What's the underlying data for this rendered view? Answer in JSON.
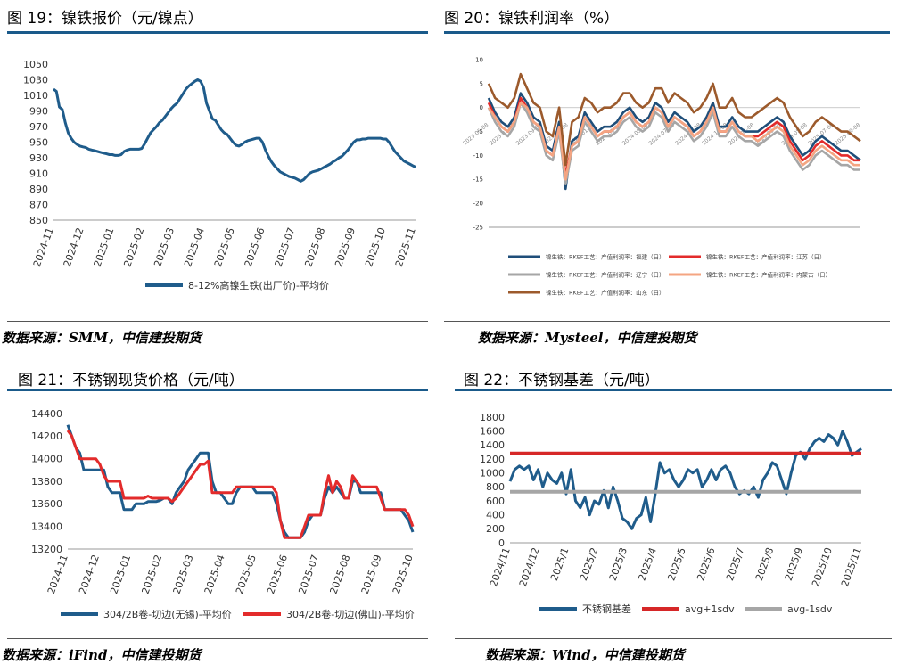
{
  "panels": {
    "p19": {
      "title": "图 19：镍铁报价（元/镍点）",
      "source": "数据来源：SMM，中信建投期货"
    },
    "p20": {
      "title": "图 20：镍铁利润率（%）",
      "source": "数据来源：Mysteel，中信建投期货"
    },
    "p21": {
      "title": "图 21：不锈钢现货价格（元/吨）",
      "source": "数据来源：iFind，中信建投期货"
    },
    "p22": {
      "title": "图 22：不锈钢基差（元/吨）",
      "source": "数据来源：Wind，中信建投期货"
    }
  },
  "chart_data": [
    {
      "id": "c19",
      "type": "line",
      "yticks": [
        850,
        870,
        890,
        910,
        930,
        950,
        970,
        990,
        1010,
        1030,
        1050
      ],
      "ylim": [
        850,
        1050
      ],
      "xticks": [
        "2024-11",
        "2024-12",
        "2025-01",
        "2025-02",
        "2025-03",
        "2025-04",
        "2025-05",
        "2025-06",
        "2025-07",
        "2025-08",
        "2025-09",
        "2025-10",
        "2025-11"
      ],
      "series": [
        {
          "name": "8-12%高镍生铁(出厂价)-平均价",
          "color": "#1f5c8b",
          "values": [
            1018,
            1015,
            995,
            992,
            975,
            962,
            955,
            950,
            947,
            945,
            944,
            943,
            941,
            940,
            939,
            938,
            937,
            936,
            935,
            934,
            934,
            933,
            933,
            934,
            938,
            940,
            941,
            941,
            941,
            941,
            942,
            948,
            955,
            962,
            966,
            970,
            975,
            978,
            983,
            988,
            993,
            997,
            1000,
            1006,
            1012,
            1018,
            1022,
            1025,
            1028,
            1030,
            1028,
            1020,
            1000,
            990,
            980,
            978,
            972,
            966,
            962,
            960,
            955,
            950,
            946,
            945,
            947,
            950,
            952,
            953,
            954,
            955,
            955,
            950,
            940,
            932,
            925,
            920,
            916,
            912,
            910,
            908,
            906,
            905,
            904,
            902,
            900,
            902,
            906,
            910,
            912,
            913,
            914,
            916,
            918,
            920,
            922,
            925,
            927,
            930,
            932,
            936,
            940,
            945,
            950,
            953,
            953,
            954,
            954,
            955,
            955,
            955,
            955,
            955,
            954,
            954,
            950,
            944,
            938,
            934,
            930,
            926,
            924,
            922,
            920,
            918
          ]
        }
      ]
    },
    {
      "id": "c20",
      "type": "line",
      "yticks": [
        10,
        5,
        0,
        -5,
        -10,
        -15,
        -20,
        -25
      ],
      "ylim": [
        -25,
        10
      ],
      "xticks": [
        "2023-05-08",
        "2023-07-08",
        "2023-09-08",
        "2023-11-08",
        "2024-01-08",
        "2024-03-08",
        "2024-05-08",
        "2024-07-08",
        "2024-09-08",
        "2024-11-08",
        "2025-01-08",
        "2025-03-08",
        "2025-05-08",
        "2025-07-08",
        "2025-09-08"
      ],
      "series": [
        {
          "name": "镍生铁：RKEF工艺：产值利润率：福建（日）",
          "color": "#1f4e79",
          "values": [
            2,
            -1,
            -3,
            -4,
            -2,
            3,
            1,
            -2,
            -3,
            -8,
            -9,
            -3,
            -17,
            -7,
            -6,
            -1,
            -3,
            -5,
            -4,
            -4,
            -3,
            -1,
            0,
            -2,
            -3,
            -2,
            1,
            0,
            -3,
            -1,
            -2,
            -3,
            -5,
            -4,
            -2,
            1,
            -4,
            -4,
            -2,
            -4,
            -5,
            -5,
            -5,
            -4,
            -3,
            -2,
            -3,
            -6,
            -8,
            -10,
            -9,
            -7,
            -6,
            -7,
            -8,
            -9,
            -9,
            -10,
            -11
          ]
        },
        {
          "name": "镍生铁：RKEF工艺：产值利润率：江苏（日）",
          "color": "#e32b2b",
          "values": [
            1,
            -2,
            -4,
            -5,
            -3,
            2,
            0,
            -3,
            -4,
            -9,
            -10,
            -4,
            -14,
            -8,
            -7,
            -2,
            -4,
            -6,
            -5,
            -5,
            -4,
            -2,
            -1,
            -3,
            -4,
            -3,
            0,
            -1,
            -4,
            -2,
            -3,
            -4,
            -6,
            -5,
            -3,
            0,
            -5,
            -5,
            -3,
            -5,
            -6,
            -6,
            -6,
            -5,
            -4,
            -3,
            -4,
            -7,
            -9,
            -11,
            -10,
            -8,
            -7,
            -8,
            -9,
            -10,
            -10,
            -11,
            -11
          ]
        },
        {
          "name": "镍生铁：RKEF工艺：产值利润率：辽宁（日）",
          "color": "#a6a6a6",
          "values": [
            0,
            -3,
            -5,
            -6,
            -4,
            1,
            -1,
            -4,
            -5,
            -10,
            -11,
            -5,
            -16,
            -9,
            -8,
            -3,
            -5,
            -7,
            -6,
            -6,
            -5,
            -3,
            -2,
            -4,
            -5,
            -4,
            -1,
            -2,
            -5,
            -3,
            -4,
            -5,
            -7,
            -6,
            -4,
            -1,
            -6,
            -6,
            -4,
            -6,
            -7,
            -7,
            -8,
            -7,
            -6,
            -5,
            -6,
            -9,
            -11,
            -13,
            -12,
            -10,
            -9,
            -10,
            -11,
            -12,
            -12,
            -13,
            -13
          ]
        },
        {
          "name": "镍生铁：RKEF工艺：产值利润率：内蒙古（日）",
          "color": "#f4a582",
          "values": [
            0,
            -2,
            -4,
            -5,
            -3,
            1,
            0,
            -3,
            -4,
            -9,
            -10,
            -4,
            -15,
            -8,
            -7,
            -2,
            -4,
            -6,
            -5,
            -5,
            -4,
            -2,
            -1,
            -3,
            -4,
            -3,
            0,
            -1,
            -4,
            -2,
            -3,
            -4,
            -6,
            -5,
            -3,
            0,
            -5,
            -5,
            -3,
            -5,
            -6,
            -6,
            -7,
            -6,
            -5,
            -4,
            -5,
            -8,
            -10,
            -12,
            -11,
            -9,
            -8,
            -9,
            -10,
            -11,
            -11,
            -12,
            -12
          ]
        },
        {
          "name": "镍生铁：RKEF工艺：产值利润率：山东（日）",
          "color": "#9c5a2c",
          "values": [
            5,
            2,
            1,
            0,
            2,
            7,
            4,
            1,
            0,
            -5,
            -6,
            0,
            -12,
            -3,
            -2,
            2,
            1,
            -1,
            0,
            0,
            1,
            3,
            3,
            1,
            0,
            1,
            4,
            4,
            1,
            3,
            2,
            1,
            -1,
            0,
            2,
            5,
            0,
            0,
            2,
            -1,
            -2,
            -2,
            -1,
            0,
            1,
            2,
            1,
            -2,
            -4,
            -6,
            -5,
            -3,
            -2,
            -3,
            -4,
            -5,
            -5,
            -6,
            -7
          ]
        }
      ]
    },
    {
      "id": "c21",
      "type": "line",
      "yticks": [
        13200,
        13400,
        13600,
        13800,
        14000,
        14200,
        14400
      ],
      "ylim": [
        13200,
        14400
      ],
      "xticks": [
        "2024-11",
        "2024-12",
        "2025-01",
        "2025-02",
        "2025-03",
        "2025-04",
        "2025-05",
        "2025-06",
        "2025-07",
        "2025-08",
        "2025-09",
        "2025-10"
      ],
      "series": [
        {
          "name": "304/2B卷-切边(无锡)-平均价",
          "color": "#1f5c8b",
          "values": [
            14300,
            14200,
            14100,
            14050,
            13900,
            13900,
            13900,
            13900,
            13900,
            13900,
            13750,
            13700,
            13700,
            13700,
            13550,
            13550,
            13550,
            13600,
            13600,
            13600,
            13620,
            13620,
            13620,
            13630,
            13650,
            13650,
            13600,
            13700,
            13750,
            13800,
            13900,
            13950,
            14000,
            14050,
            14050,
            14050,
            13800,
            13700,
            13700,
            13650,
            13600,
            13600,
            13700,
            13750,
            13750,
            13750,
            13750,
            13700,
            13700,
            13700,
            13700,
            13700,
            13600,
            13450,
            13350,
            13300,
            13300,
            13300,
            13300,
            13350,
            13450,
            13500,
            13500,
            13500,
            13650,
            13750,
            13700,
            13750,
            13700,
            13650,
            13650,
            13800,
            13800,
            13700,
            13700,
            13700,
            13700,
            13700,
            13700,
            13550,
            13550,
            13550,
            13550,
            13550,
            13500,
            13450,
            13350
          ]
        },
        {
          "name": "304/2B卷-切边(佛山)-平均价",
          "color": "#e32b2b",
          "values": [
            14250,
            14200,
            14100,
            14000,
            14000,
            14000,
            14000,
            14000,
            13950,
            13850,
            13800,
            13800,
            13800,
            13800,
            13650,
            13650,
            13650,
            13650,
            13650,
            13650,
            13670,
            13650,
            13650,
            13650,
            13650,
            13650,
            13620,
            13650,
            13700,
            13750,
            13800,
            13850,
            13900,
            13950,
            13950,
            13980,
            13700,
            13700,
            13700,
            13700,
            13700,
            13700,
            13750,
            13750,
            13750,
            13750,
            13750,
            13750,
            13750,
            13750,
            13750,
            13750,
            13700,
            13450,
            13300,
            13300,
            13300,
            13300,
            13300,
            13400,
            13500,
            13500,
            13500,
            13500,
            13700,
            13850,
            13700,
            13800,
            13750,
            13650,
            13650,
            13850,
            13800,
            13750,
            13750,
            13750,
            13750,
            13750,
            13650,
            13550,
            13550,
            13550,
            13550,
            13550,
            13550,
            13500,
            13400
          ]
        }
      ]
    },
    {
      "id": "c22",
      "type": "line",
      "yticks": [
        0,
        200,
        400,
        600,
        800,
        1000,
        1200,
        1400,
        1600,
        1800
      ],
      "ylim": [
        0,
        1800
      ],
      "xticks": [
        "2024/11",
        "2024/12",
        "2025/1",
        "2025/2",
        "2025/3",
        "2025/4",
        "2025/5",
        "2025/6",
        "2025/7",
        "2025/8",
        "2025/9",
        "2025/10",
        "2025/11"
      ],
      "series": [
        {
          "name": "不锈钢基差",
          "color": "#1f5c8b",
          "values": [
            880,
            1050,
            1100,
            1050,
            1100,
            900,
            1050,
            800,
            1000,
            900,
            850,
            1000,
            700,
            1050,
            600,
            500,
            650,
            400,
            600,
            550,
            750,
            500,
            800,
            600,
            350,
            300,
            200,
            350,
            400,
            650,
            300,
            700,
            1150,
            1000,
            1050,
            900,
            800,
            900,
            1050,
            1000,
            1050,
            800,
            900,
            1050,
            900,
            1050,
            1100,
            1000,
            800,
            700,
            750,
            700,
            800,
            650,
            900,
            1000,
            1150,
            1100,
            900,
            700,
            1000,
            1250,
            1300,
            1200,
            1350,
            1450,
            1500,
            1450,
            1550,
            1500,
            1400,
            1600,
            1450,
            1250,
            1300,
            1350
          ]
        },
        {
          "name": "avg+1sdv",
          "color": "#d62728",
          "values": [
            1280,
            1280
          ]
        },
        {
          "name": "avg-1sdv",
          "color": "#a6a6a6",
          "values": [
            730,
            730
          ]
        }
      ]
    }
  ]
}
